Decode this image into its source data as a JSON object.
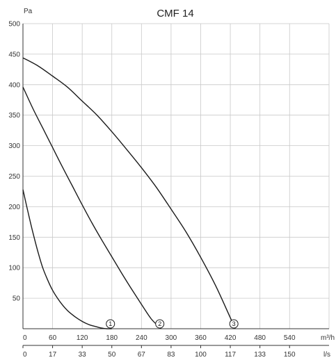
{
  "chart_data": {
    "type": "line",
    "title": "CMF 14",
    "ylabel": "Pa",
    "xlabel_primary": "m³/h",
    "xlabel_secondary": "l/s",
    "ylim": [
      0,
      500
    ],
    "xlim": [
      0,
      620
    ],
    "grid": true,
    "y_ticks": [
      "50",
      "100",
      "150",
      "200",
      "250",
      "300",
      "350",
      "400",
      "450",
      "500"
    ],
    "y_tick_values": [
      50,
      100,
      150,
      200,
      250,
      300,
      350,
      400,
      450,
      500
    ],
    "y_zero_label": "0",
    "x_ticks_primary": [
      "0",
      "60",
      "120",
      "180",
      "240",
      "300",
      "360",
      "420",
      "480",
      "540"
    ],
    "x_ticks_primary_values": [
      0,
      60,
      120,
      180,
      240,
      300,
      360,
      420,
      480,
      540
    ],
    "x_ticks_secondary": [
      "0",
      "17",
      "33",
      "50",
      "67",
      "83",
      "100",
      "117",
      "133",
      "150"
    ],
    "series": [
      {
        "name": "1",
        "x": [
          0,
          10,
          20,
          30,
          40,
          50,
          60,
          70,
          80,
          90,
          100,
          110,
          120,
          130,
          140,
          150,
          160,
          170,
          180
        ],
        "y": [
          228,
          192,
          158,
          127,
          100,
          80,
          63,
          50,
          39,
          30,
          23,
          17,
          12,
          8,
          5,
          3,
          1,
          0,
          0
        ]
      },
      {
        "name": "2",
        "x": [
          0,
          20,
          40,
          60,
          80,
          100,
          120,
          140,
          160,
          180,
          200,
          220,
          240,
          260,
          280
        ],
        "y": [
          396,
          361,
          329,
          297,
          265,
          234,
          203,
          173,
          145,
          118,
          91,
          65,
          40,
          16,
          0
        ]
      },
      {
        "name": "3",
        "x": [
          0,
          30,
          60,
          90,
          120,
          150,
          180,
          210,
          240,
          270,
          300,
          330,
          360,
          390,
          420,
          430
        ],
        "y": [
          444,
          431,
          414,
          396,
          373,
          350,
          323,
          294,
          264,
          232,
          196,
          159,
          117,
          71,
          18,
          0
        ]
      }
    ]
  }
}
